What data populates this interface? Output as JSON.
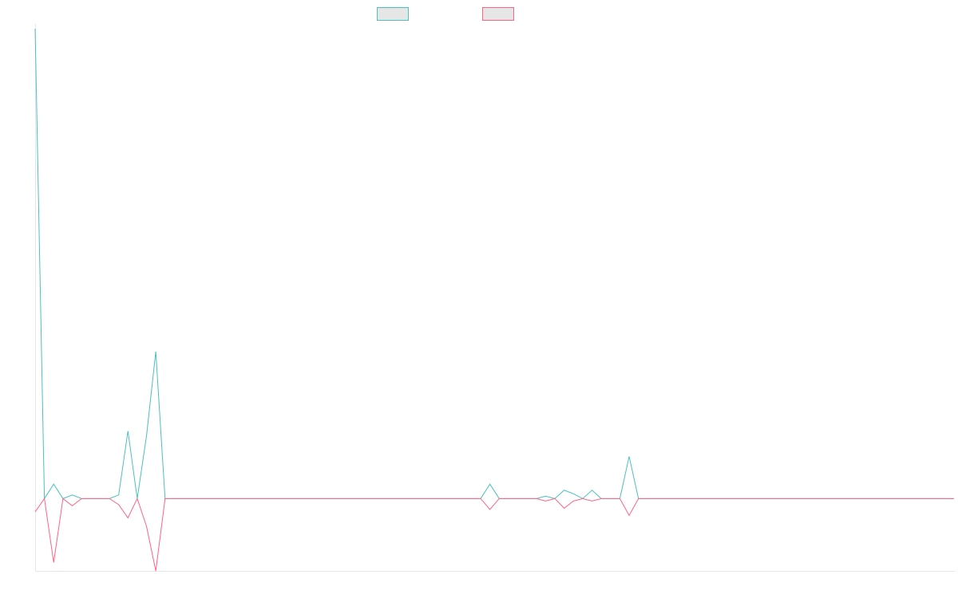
{
  "chart_data": {
    "type": "line",
    "title": "",
    "xlabel": "",
    "ylabel": "",
    "grid": false,
    "legend_position": "top",
    "x_count": 100,
    "ylim": [
      -3.0,
      19.5
    ],
    "series": [
      {
        "color": "#4bc0c0",
        "values": [
          19.5,
          0,
          0.6,
          0,
          0.15,
          0,
          0,
          0,
          0,
          0.15,
          2.8,
          0,
          2.6,
          6.1,
          0,
          0,
          0,
          0,
          0,
          0,
          0,
          0,
          0,
          0,
          0,
          0,
          0,
          0,
          0,
          0,
          0,
          0,
          0,
          0,
          0,
          0,
          0,
          0,
          0,
          0,
          0,
          0,
          0,
          0,
          0,
          0,
          0,
          0,
          0,
          0.6,
          0,
          0,
          0,
          0,
          0,
          0.1,
          0,
          0.35,
          0.2,
          0,
          0.35,
          0,
          0,
          0,
          1.75,
          0,
          0,
          0,
          0,
          0,
          0,
          0,
          0,
          0,
          0,
          0,
          0,
          0,
          0,
          0,
          0,
          0,
          0,
          0,
          0,
          0,
          0,
          0,
          0,
          0,
          0,
          0,
          0,
          0,
          0,
          0,
          0,
          0,
          0,
          0
        ]
      },
      {
        "color": "#ff6384",
        "values": [
          -0.55,
          0,
          -2.65,
          0,
          -0.3,
          0,
          0,
          0,
          0,
          -0.25,
          -0.8,
          0,
          -1.15,
          -3.0,
          0,
          0,
          0,
          0,
          0,
          0,
          0,
          0,
          0,
          0,
          0,
          0,
          0,
          0,
          0,
          0,
          0,
          0,
          0,
          0,
          0,
          0,
          0,
          0,
          0,
          0,
          0,
          0,
          0,
          0,
          0,
          0,
          0,
          0,
          0,
          -0.45,
          0,
          0,
          0,
          0,
          0,
          -0.1,
          0,
          -0.4,
          -0.1,
          0,
          -0.1,
          0,
          0,
          0,
          -0.7,
          0,
          0,
          0,
          0,
          0,
          0,
          0,
          0,
          0,
          0,
          0,
          0,
          0,
          0,
          0,
          0,
          0,
          0,
          0,
          0,
          0,
          0,
          0,
          0,
          0,
          0,
          0,
          0,
          0,
          0,
          0,
          0,
          0,
          0,
          0
        ]
      }
    ]
  }
}
